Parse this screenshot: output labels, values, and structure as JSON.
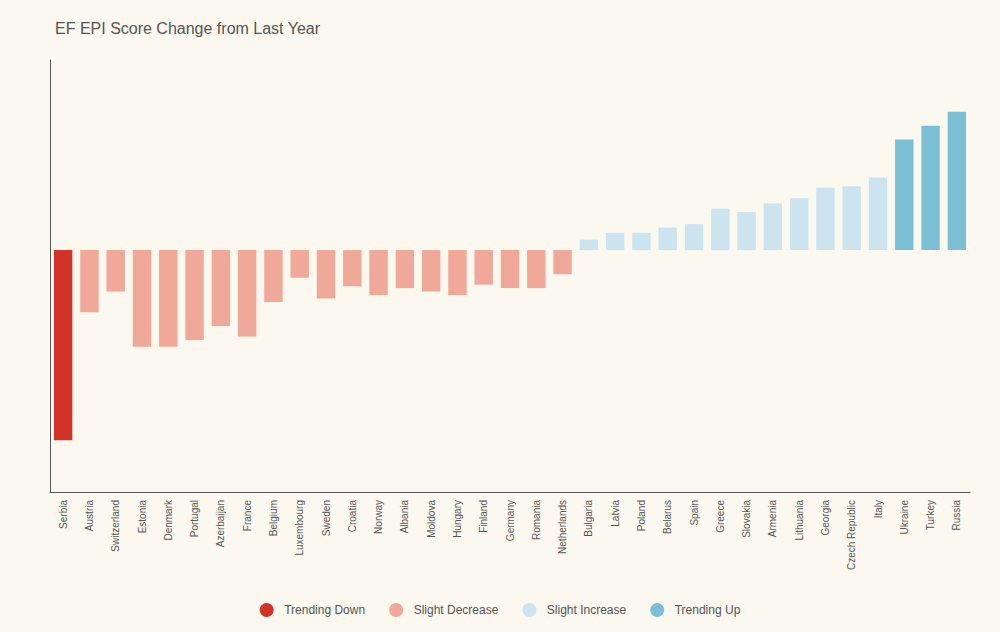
{
  "chart_data": {
    "type": "bar",
    "title": "EF EPI Score Change from Last Year",
    "categories": [
      "Serbia",
      "Austria",
      "Switzerland",
      "Estonia",
      "Denmark",
      "Portugal",
      "Azerbaijan",
      "France",
      "Belgium",
      "Luxembourg",
      "Sweden",
      "Croatia",
      "Norway",
      "Albania",
      "Moldova",
      "Hungary",
      "Finland",
      "Germany",
      "Romania",
      "Netherlands",
      "Bulgaria",
      "Latvia",
      "Poland",
      "Belarus",
      "Spain",
      "Greece",
      "Slovakia",
      "Armenia",
      "Lithuania",
      "Georgia",
      "Czech Republic",
      "Italy",
      "Ukraine",
      "Turkey",
      "Russia"
    ],
    "series": [
      {
        "name": "Trending Down",
        "color": "#d03328",
        "values": [
          -5.5,
          null,
          null,
          null,
          null,
          null,
          null,
          null,
          null,
          null,
          null,
          null,
          null,
          null,
          null,
          null,
          null,
          null,
          null,
          null,
          null,
          null,
          null,
          null,
          null,
          null,
          null,
          null,
          null,
          null,
          null,
          null,
          null,
          null,
          null
        ]
      },
      {
        "name": "Slight Decrease",
        "color": "#f0a898",
        "values": [
          null,
          -1.8,
          -1.2,
          -2.8,
          -2.8,
          -2.6,
          -2.2,
          -2.5,
          -1.5,
          -0.8,
          -1.4,
          -1.05,
          -1.3,
          -1.1,
          -1.2,
          -1.3,
          -1.0,
          -1.1,
          -1.1,
          -0.7,
          null,
          null,
          null,
          null,
          null,
          null,
          null,
          null,
          null,
          null,
          null,
          null,
          null,
          null,
          null
        ]
      },
      {
        "name": "Slight Increase",
        "color": "#cce4f0",
        "values": [
          null,
          null,
          null,
          null,
          null,
          null,
          null,
          null,
          null,
          null,
          null,
          null,
          null,
          null,
          null,
          null,
          null,
          null,
          null,
          null,
          0.3,
          0.5,
          0.5,
          0.65,
          0.75,
          1.2,
          1.1,
          1.35,
          1.5,
          1.8,
          1.85,
          2.1,
          null,
          null,
          null
        ]
      },
      {
        "name": "Trending Up",
        "color": "#7bbfd4",
        "values": [
          null,
          null,
          null,
          null,
          null,
          null,
          null,
          null,
          null,
          null,
          null,
          null,
          null,
          null,
          null,
          null,
          null,
          null,
          null,
          null,
          null,
          null,
          null,
          null,
          null,
          null,
          null,
          null,
          null,
          null,
          null,
          null,
          3.2,
          3.6,
          4.0
        ]
      }
    ],
    "ylim": [
      -7,
      5.5
    ],
    "grid": false,
    "legend": "bottom",
    "tick_labels": "x"
  }
}
